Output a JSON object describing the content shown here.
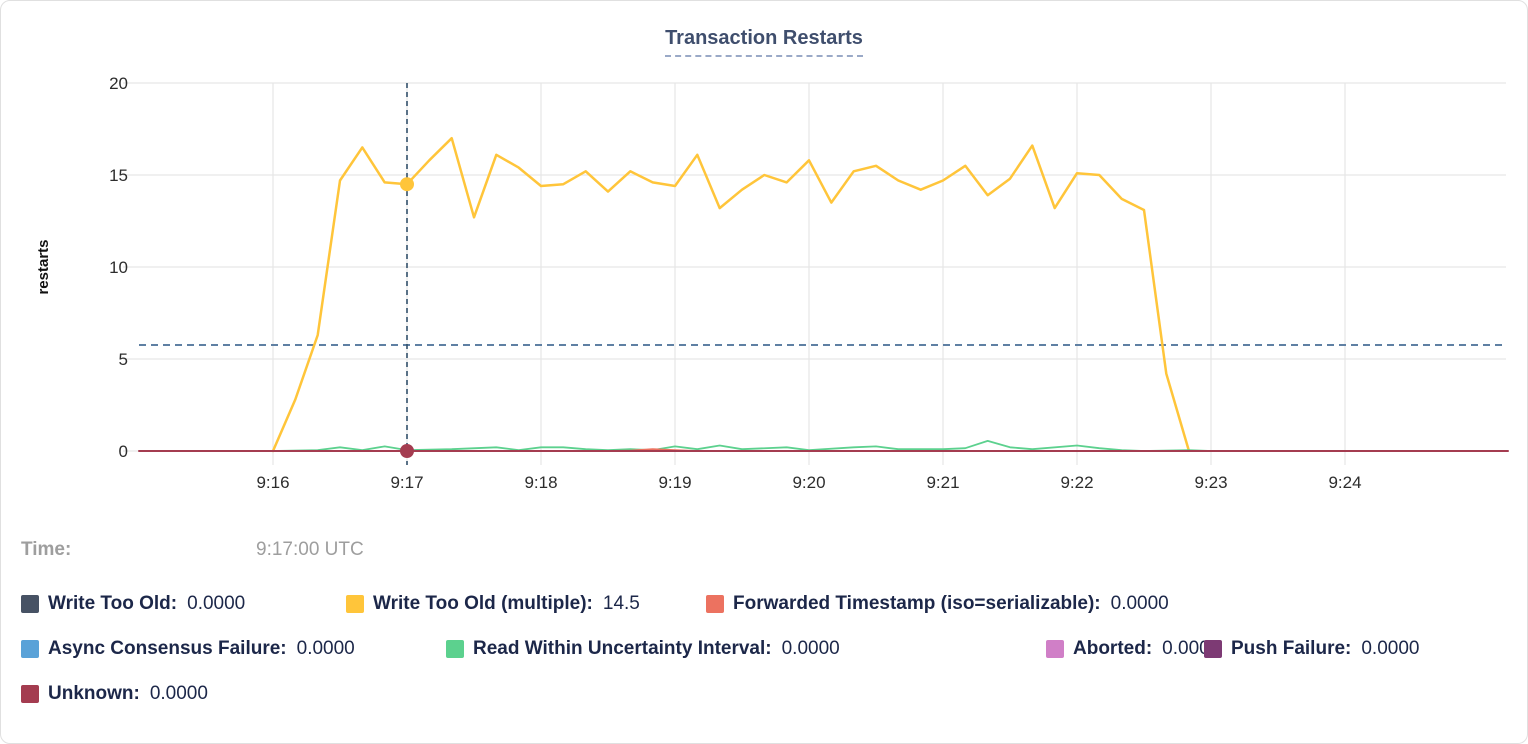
{
  "title": "Transaction Restarts",
  "tooltip": {
    "time_label": "Time:",
    "time_value": "9:17:00 UTC"
  },
  "legend": {
    "items": [
      {
        "label": "Write Too Old:",
        "value": "0.0000",
        "color": "#475264"
      },
      {
        "label": "Write Too Old (multiple):",
        "value": "14.5",
        "color": "#ffc53a"
      },
      {
        "label": "Forwarded Timestamp (iso=serializable):",
        "value": "0.0000",
        "color": "#ec7260"
      },
      {
        "label": "Async Consensus Failure:",
        "value": "0.0000",
        "color": "#5aa2d8"
      },
      {
        "label": "Read Within Uncertainty Interval:",
        "value": "0.0000",
        "color": "#5cd18e"
      },
      {
        "label": "Aborted:",
        "value": "0.0000",
        "color": "#d07fc7"
      },
      {
        "label": "Push Failure:",
        "value": "0.0000",
        "color": "#7d3a74"
      },
      {
        "label": "Unknown:",
        "value": "0.0000",
        "color": "#a43c50"
      }
    ]
  },
  "chart_data": {
    "type": "line",
    "title": "Transaction Restarts",
    "xlabel": "",
    "ylabel": "restarts",
    "ylim": [
      0,
      20
    ],
    "y_ticks": [
      0,
      5,
      10,
      15,
      20
    ],
    "x_ticks": [
      "9:16",
      "9:17",
      "9:18",
      "9:19",
      "9:20",
      "9:21",
      "9:22",
      "9:23",
      "9:24"
    ],
    "grid": true,
    "legend_position": "bottom",
    "average_line_value": 5.76,
    "time_note": "series point t values are seconds after 9:16:00 UTC",
    "hover": {
      "time": "9:17:00 UTC",
      "t_seconds": 60,
      "points": [
        {
          "series": "Write Too Old (multiple)",
          "value": 14.5,
          "color": "#ffc53a",
          "r": 7
        },
        {
          "series": "Unknown",
          "value": 0,
          "color": "#a43c50",
          "r": 7
        }
      ]
    },
    "series": [
      {
        "name": "Write Too Old (multiple)",
        "color": "#ffc53a",
        "width": 2.5,
        "points": [
          [
            0,
            0
          ],
          [
            10,
            2.8
          ],
          [
            20,
            6.3
          ],
          [
            30,
            14.7
          ],
          [
            40,
            16.5
          ],
          [
            50,
            14.6
          ],
          [
            60,
            14.5
          ],
          [
            70,
            15.8
          ],
          [
            80,
            17
          ],
          [
            90,
            12.7
          ],
          [
            100,
            16.1
          ],
          [
            110,
            15.4
          ],
          [
            120,
            14.4
          ],
          [
            130,
            14.5
          ],
          [
            140,
            15.2
          ],
          [
            150,
            14.1
          ],
          [
            160,
            15.2
          ],
          [
            170,
            14.6
          ],
          [
            180,
            14.4
          ],
          [
            190,
            16.1
          ],
          [
            200,
            13.2
          ],
          [
            210,
            14.2
          ],
          [
            220,
            15
          ],
          [
            230,
            14.6
          ],
          [
            240,
            15.8
          ],
          [
            250,
            13.5
          ],
          [
            260,
            15.2
          ],
          [
            270,
            15.5
          ],
          [
            280,
            14.7
          ],
          [
            290,
            14.2
          ],
          [
            300,
            14.7
          ],
          [
            310,
            15.5
          ],
          [
            320,
            13.9
          ],
          [
            330,
            14.8
          ],
          [
            340,
            16.6
          ],
          [
            350,
            13.2
          ],
          [
            360,
            15.1
          ],
          [
            370,
            15
          ],
          [
            380,
            13.7
          ],
          [
            390,
            13.1
          ],
          [
            400,
            4.2
          ],
          [
            410,
            0.05
          ]
        ]
      },
      {
        "name": "Read Within Uncertainty Interval",
        "color": "#5cd18e",
        "width": 1.8,
        "points": [
          [
            0,
            0
          ],
          [
            20,
            0.05
          ],
          [
            30,
            0.2
          ],
          [
            40,
            0.05
          ],
          [
            50,
            0.25
          ],
          [
            60,
            0.05
          ],
          [
            80,
            0.1
          ],
          [
            100,
            0.2
          ],
          [
            110,
            0.05
          ],
          [
            120,
            0.2
          ],
          [
            130,
            0.2
          ],
          [
            140,
            0.1
          ],
          [
            150,
            0.05
          ],
          [
            160,
            0.1
          ],
          [
            170,
            0.05
          ],
          [
            180,
            0.25
          ],
          [
            190,
            0.1
          ],
          [
            200,
            0.3
          ],
          [
            210,
            0.1
          ],
          [
            230,
            0.2
          ],
          [
            240,
            0.05
          ],
          [
            260,
            0.2
          ],
          [
            270,
            0.25
          ],
          [
            280,
            0.1
          ],
          [
            300,
            0.1
          ],
          [
            310,
            0.15
          ],
          [
            320,
            0.55
          ],
          [
            330,
            0.2
          ],
          [
            340,
            0.1
          ],
          [
            360,
            0.3
          ],
          [
            370,
            0.15
          ],
          [
            380,
            0.05
          ],
          [
            390,
            0
          ],
          [
            410,
            0.05
          ],
          [
            420,
            0
          ]
        ]
      },
      {
        "name": "Forwarded Timestamp (iso=serializable)",
        "color": "#ec7260",
        "width": 1.8,
        "points": [
          [
            150,
            0
          ],
          [
            160,
            0.02
          ],
          [
            170,
            0.1
          ],
          [
            180,
            0.05
          ],
          [
            190,
            0
          ]
        ]
      },
      {
        "name": "Unknown",
        "color": "#a43c50",
        "width": 2,
        "points": [
          [
            -60,
            0
          ],
          [
            553,
            0
          ]
        ]
      }
    ]
  }
}
